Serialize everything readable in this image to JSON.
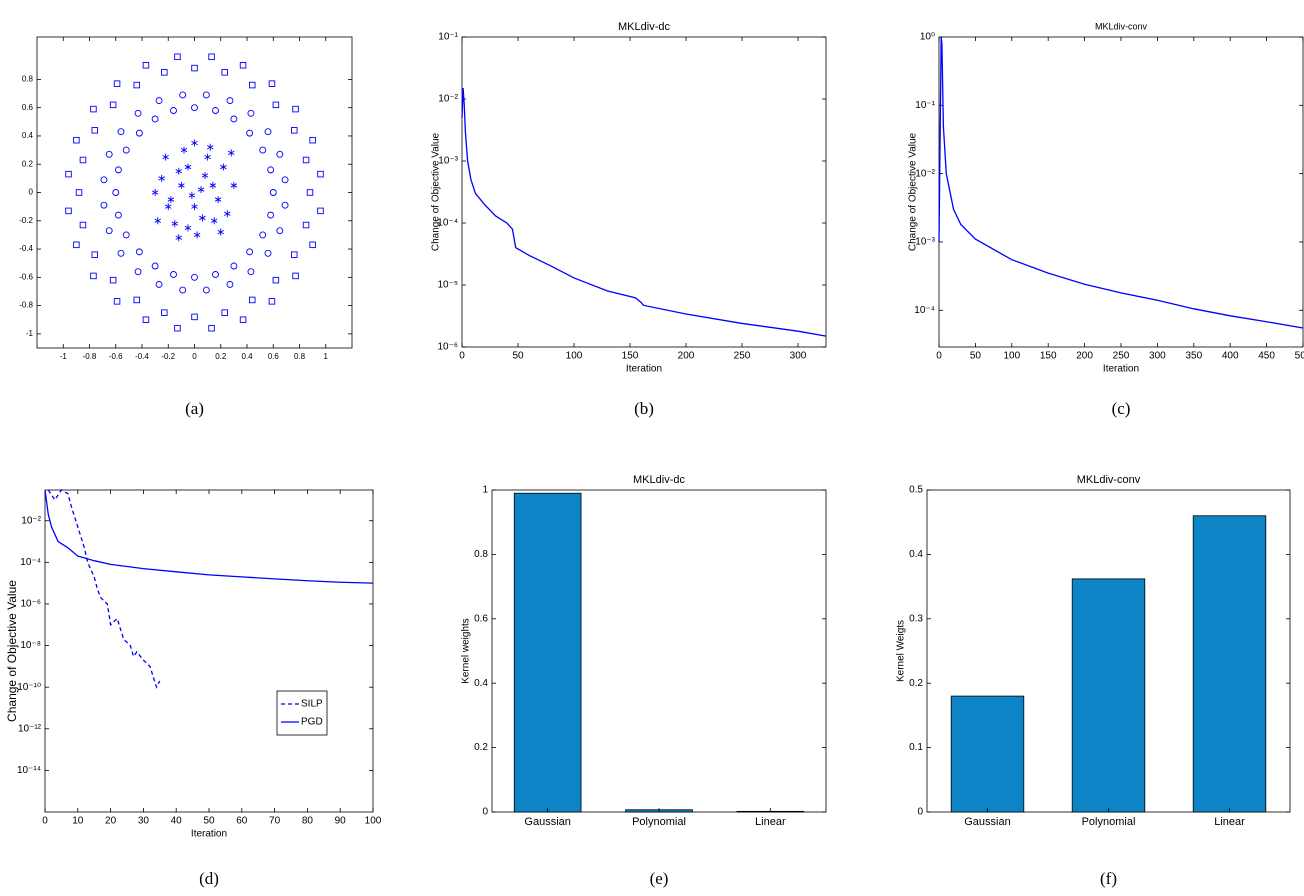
{
  "chart_data": [
    {
      "type": "scatter",
      "caption": "(a)",
      "xlim": [
        -1.2,
        1.2
      ],
      "ylim": [
        -1.1,
        1.1
      ],
      "xticks": [
        -1,
        -0.8,
        -0.6,
        -0.4,
        -0.2,
        0,
        0.2,
        0.4,
        0.6,
        0.8,
        1
      ],
      "yticks": [
        -1,
        -0.8,
        -0.6,
        -0.4,
        -0.2,
        0,
        0.2,
        0.4,
        0.6,
        0.8
      ],
      "series": [
        {
          "marker": "star",
          "color": "#0000ff",
          "x": [
            0.05,
            -0.12,
            0.18,
            -0.2,
            0.1,
            -0.05,
            0.22,
            -0.25,
            0.0,
            0.15,
            -0.15,
            0.08,
            -0.08,
            0.25,
            -0.3,
            0.3,
            0.02,
            -0.1,
            0.12,
            -0.22,
            0.2,
            -0.05,
            0.06,
            -0.18,
            0.28,
            -0.28,
            0.14,
            -0.02,
            0.0,
            -0.12
          ],
          "y": [
            0.02,
            0.15,
            -0.05,
            -0.1,
            0.25,
            -0.25,
            0.18,
            0.1,
            -0.1,
            -0.2,
            -0.22,
            0.12,
            0.3,
            -0.15,
            0.0,
            0.05,
            -0.3,
            0.05,
            0.32,
            0.25,
            -0.28,
            0.18,
            -0.18,
            -0.05,
            0.28,
            -0.2,
            0.05,
            -0.02,
            0.35,
            -0.32
          ]
        },
        {
          "marker": "circle",
          "color": "#0000ff",
          "x": [
            0.6,
            0.58,
            0.52,
            0.42,
            0.3,
            0.16,
            0.0,
            -0.16,
            -0.3,
            -0.42,
            -0.52,
            -0.58,
            -0.6,
            -0.58,
            -0.52,
            -0.42,
            -0.3,
            -0.16,
            0.0,
            0.16,
            0.3,
            0.42,
            0.52,
            0.58,
            0.69,
            0.65,
            0.56,
            0.43,
            0.27,
            0.09,
            -0.09,
            -0.27,
            -0.43,
            -0.56,
            -0.65,
            -0.69,
            -0.69,
            -0.65,
            -0.56,
            -0.43,
            -0.27,
            -0.09,
            0.09,
            0.27,
            0.43,
            0.56,
            0.65,
            0.69
          ],
          "y": [
            0.0,
            0.16,
            0.3,
            0.42,
            0.52,
            0.58,
            0.6,
            0.58,
            0.52,
            0.42,
            0.3,
            0.16,
            0.0,
            -0.16,
            -0.3,
            -0.42,
            -0.52,
            -0.58,
            -0.6,
            -0.58,
            -0.52,
            -0.42,
            -0.3,
            -0.16,
            0.09,
            0.27,
            0.43,
            0.56,
            0.65,
            0.69,
            0.69,
            0.65,
            0.56,
            0.43,
            0.27,
            0.09,
            -0.09,
            -0.27,
            -0.43,
            -0.56,
            -0.65,
            -0.69,
            -0.69,
            -0.65,
            -0.56,
            -0.43,
            -0.27,
            -0.09
          ]
        },
        {
          "marker": "square",
          "color": "#0000ff",
          "x": [
            0.88,
            0.85,
            0.76,
            0.62,
            0.44,
            0.23,
            0.0,
            -0.23,
            -0.44,
            -0.62,
            -0.76,
            -0.85,
            -0.88,
            -0.85,
            -0.76,
            -0.62,
            -0.44,
            -0.23,
            0.0,
            0.23,
            0.44,
            0.62,
            0.76,
            0.85,
            0.96,
            0.9,
            0.77,
            0.59,
            0.37,
            0.13,
            -0.13,
            -0.37,
            -0.59,
            -0.77,
            -0.9,
            -0.96,
            -0.96,
            -0.9,
            -0.77,
            -0.59,
            -0.37,
            -0.13,
            0.13,
            0.37,
            0.59,
            0.77,
            0.9,
            0.96
          ],
          "y": [
            0.0,
            0.23,
            0.44,
            0.62,
            0.76,
            0.85,
            0.88,
            0.85,
            0.76,
            0.62,
            0.44,
            0.23,
            0.0,
            -0.23,
            -0.44,
            -0.62,
            -0.76,
            -0.85,
            -0.88,
            -0.85,
            -0.76,
            -0.62,
            -0.44,
            -0.23,
            0.13,
            0.37,
            0.59,
            0.77,
            0.9,
            0.96,
            0.96,
            0.9,
            0.77,
            0.59,
            0.37,
            0.13,
            -0.13,
            -0.37,
            -0.59,
            -0.77,
            -0.9,
            -0.96,
            -0.96,
            -0.9,
            -0.77,
            -0.59,
            -0.37,
            -0.13
          ]
        }
      ]
    },
    {
      "type": "line",
      "caption": "(b)",
      "title": "MKLdiv-dc",
      "x_label": "Iteration",
      "y_label": "Change of Objective Value",
      "yscale": "log",
      "xlim": [
        0,
        325
      ],
      "ylim": [
        1e-06,
        0.1
      ],
      "xticks": [
        0,
        50,
        100,
        150,
        200,
        250,
        300
      ],
      "yticks": [
        {
          "value": 1e-06,
          "label": "10⁻⁶"
        },
        {
          "value": 1e-05,
          "label": "10⁻⁵"
        },
        {
          "value": 0.0001,
          "label": "10⁻⁴"
        },
        {
          "value": 0.001,
          "label": "10⁻³"
        },
        {
          "value": 0.01,
          "label": "10⁻²"
        },
        {
          "value": 0.1,
          "label": "10⁻¹"
        }
      ],
      "series": [
        {
          "color": "#0000ff",
          "linestyle": "solid",
          "x": [
            0,
            1,
            2,
            3,
            5,
            8,
            12,
            20,
            30,
            40,
            45,
            47,
            48,
            60,
            80,
            100,
            130,
            155,
            160,
            162,
            200,
            250,
            300,
            325
          ],
          "y": [
            0.005,
            0.015,
            0.008,
            0.003,
            0.001,
            0.0005,
            0.0003,
            0.0002,
            0.00013,
            0.0001,
            8e-05,
            5e-05,
            4e-05,
            3e-05,
            2e-05,
            1.3e-05,
            8e-06,
            6.2e-06,
            5.2e-06,
            4.7e-06,
            3.4e-06,
            2.4e-06,
            1.8e-06,
            1.5e-06
          ]
        }
      ]
    },
    {
      "type": "line",
      "caption": "(c)",
      "title": "MKLdiv-conv",
      "x_label": "Iteration",
      "y_label": "Change of Objective Value",
      "yscale": "log",
      "xlim": [
        0,
        500
      ],
      "ylim": [
        2.9e-05,
        1
      ],
      "xticks": [
        0,
        50,
        100,
        150,
        200,
        250,
        300,
        350,
        400,
        450,
        500
      ],
      "yticks": [
        {
          "value": 0.0001,
          "label": "10⁻⁴"
        },
        {
          "value": 0.001,
          "label": "10⁻³"
        },
        {
          "value": 0.01,
          "label": "10⁻²"
        },
        {
          "value": 0.1,
          "label": "10⁻¹"
        },
        {
          "value": 1,
          "label": "10⁰"
        }
      ],
      "series": [
        {
          "color": "#0000ff",
          "linestyle": "solid",
          "x": [
            0,
            3,
            4,
            6,
            10,
            20,
            30,
            50,
            100,
            150,
            200,
            250,
            300,
            350,
            400,
            450,
            500
          ],
          "y": [
            0.001,
            1,
            0.8,
            0.05,
            0.01,
            0.003,
            0.0018,
            0.0011,
            0.00055,
            0.00035,
            0.00024,
            0.00018,
            0.00014,
            0.000105,
            8.3e-05,
            6.8e-05,
            5.5e-05
          ]
        }
      ]
    },
    {
      "type": "line",
      "caption": "(d)",
      "x_label": "Iteration",
      "y_label": "Change of Objective Value",
      "yscale": "log",
      "xlim": [
        0,
        100
      ],
      "ylim": [
        1e-16,
        0.3
      ],
      "xticks": [
        0,
        10,
        20,
        30,
        40,
        50,
        60,
        70,
        80,
        90,
        100
      ],
      "yticks": [
        {
          "value": 1e-14,
          "label": "10⁻¹⁴"
        },
        {
          "value": 1e-12,
          "label": "10⁻¹²"
        },
        {
          "value": 1e-10,
          "label": "10⁻¹⁰"
        },
        {
          "value": 1e-08,
          "label": "10⁻⁸"
        },
        {
          "value": 1e-06,
          "label": "10⁻⁶"
        },
        {
          "value": 0.0001,
          "label": "10⁻⁴"
        },
        {
          "value": 0.01,
          "label": "10⁻²"
        }
      ],
      "legend": "right",
      "series": [
        {
          "name": "SILP",
          "color": "#0000ff",
          "linestyle": "dashed",
          "x": [
            1,
            3,
            5,
            7,
            8,
            10,
            12,
            13,
            15,
            16,
            17,
            19,
            20,
            22,
            24,
            26,
            27,
            28,
            30,
            32,
            34,
            35
          ],
          "y": [
            0.3,
            0.1,
            0.3,
            0.2,
            0.05,
            0.005,
            0.0005,
            0.0001,
            2e-05,
            5e-06,
            2e-06,
            1e-06,
            1e-07,
            2e-07,
            2e-08,
            1e-08,
            3e-09,
            5e-09,
            2e-09,
            1e-09,
            1e-10,
            2e-10
          ]
        },
        {
          "name": "PGD",
          "color": "#0000ff",
          "linestyle": "solid",
          "x": [
            0,
            1,
            2,
            4,
            7,
            10,
            15,
            20,
            30,
            40,
            50,
            60,
            70,
            80,
            90,
            100
          ],
          "y": [
            0.3,
            0.02,
            0.005,
            0.001,
            0.0005,
            0.0002,
            0.00012,
            8e-05,
            5e-05,
            3.5e-05,
            2.5e-05,
            2e-05,
            1.6e-05,
            1.3e-05,
            1.1e-05,
            1e-05
          ]
        }
      ]
    },
    {
      "type": "bar",
      "caption": "(e)",
      "title": "MKLdiv-dc",
      "y_label": "Kernel weights",
      "color": "#0c84c6",
      "categories": [
        "Gaussian",
        "Polynomial",
        "Linear"
      ],
      "values": [
        0.99,
        0.007,
        0.002
      ],
      "ylim": [
        0,
        1
      ],
      "yticks": [
        0,
        0.2,
        0.4,
        0.6,
        0.8,
        1
      ]
    },
    {
      "type": "bar",
      "caption": "(f)",
      "title": "MKLdiv-conv",
      "y_label": "Kernel Weigts",
      "color": "#0c84c6",
      "categories": [
        "Gaussian",
        "Polynomial",
        "Linear"
      ],
      "values": [
        0.18,
        0.362,
        0.46
      ],
      "ylim": [
        0,
        0.5
      ],
      "yticks": [
        0,
        0.1,
        0.2,
        0.3,
        0.4,
        0.5
      ]
    }
  ]
}
